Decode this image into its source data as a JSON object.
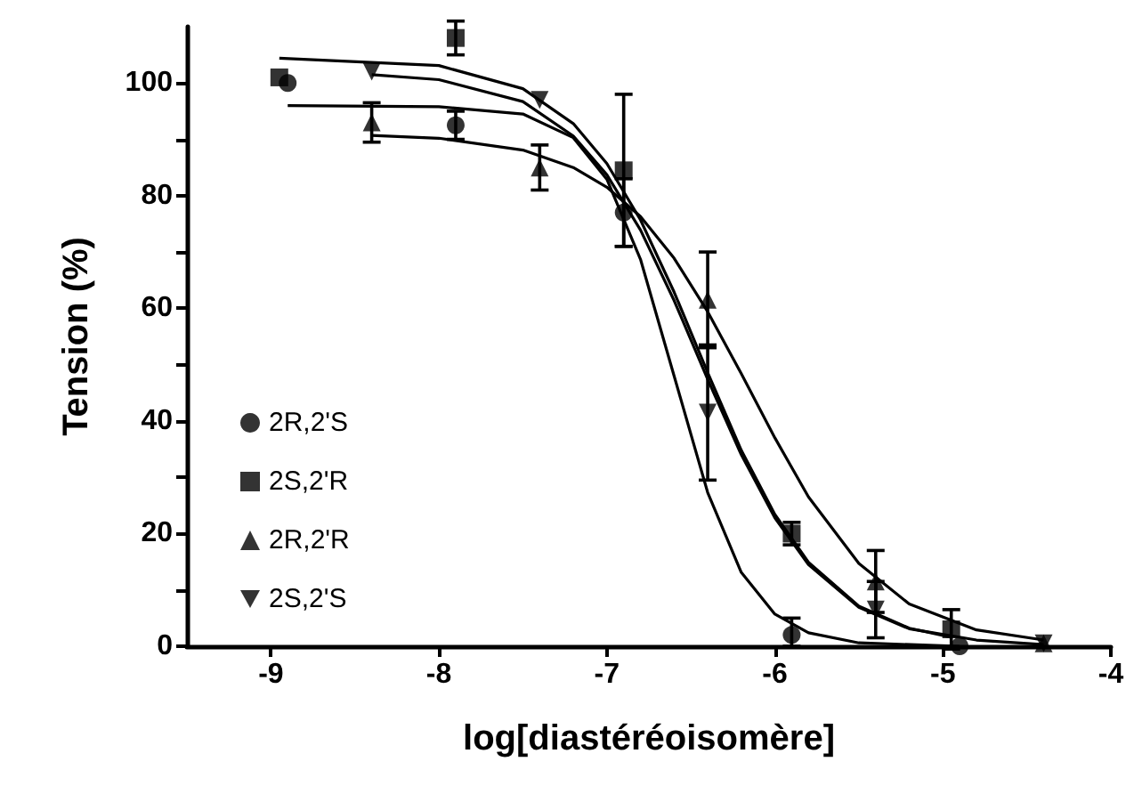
{
  "chart_data": {
    "type": "scatter",
    "xlabel": "log[diastéréoisomère]",
    "ylabel": "Tension (%)",
    "xlim": [
      -9.5,
      -4
    ],
    "xticks": [
      -9,
      -8,
      -7,
      -6,
      -5,
      -4
    ],
    "ylim": [
      0,
      110
    ],
    "yticks": [
      0,
      {
        "value": 10,
        "label": null
      },
      20,
      {
        "value": 30,
        "label": null
      },
      40,
      {
        "value": 50,
        "label": null
      },
      60,
      {
        "value": 70,
        "label": null
      },
      80,
      {
        "value": 90,
        "label": null
      },
      100
    ],
    "grid": false,
    "legend": "left",
    "series": [
      {
        "name": "2R,2'S",
        "marker": "circle",
        "color": "#000000",
        "x": [
          -8.9,
          -7.9,
          -6.9,
          -5.9,
          -4.9
        ],
        "values": [
          100,
          92.5,
          77,
          2,
          0
        ],
        "errors": [
          null,
          2.5,
          6,
          [
            0,
            5
          ],
          null
        ]
      },
      {
        "name": "2S,2'R",
        "marker": "square",
        "color": "#000000",
        "x": [
          -8.95,
          -7.9,
          -6.9,
          -5.9,
          -4.95
        ],
        "values": [
          101,
          108,
          84.5,
          20,
          3
        ],
        "errors": [
          null,
          3,
          13.5,
          2,
          3.5
        ]
      },
      {
        "name": "2R,2'R",
        "marker": "triangle",
        "color": "#000000",
        "x": [
          -8.4,
          -7.4,
          -6.4,
          -5.4,
          -4.4
        ],
        "values": [
          93,
          85,
          61.5,
          11.5,
          0.5
        ],
        "errors": [
          3.5,
          4,
          8.5,
          5.5,
          null
        ]
      },
      {
        "name": "2S,2'S",
        "marker": "triangle-down",
        "color": "#000000",
        "x": [
          -8.4,
          -7.4,
          -6.4,
          -5.4,
          -4.4
        ],
        "values": [
          102,
          97,
          41.5,
          6.5,
          0.5
        ],
        "errors": [
          null,
          null,
          12,
          5,
          null
        ]
      },
      {
        "type": "line",
        "marker": "none",
        "color": "#000000",
        "x": [
          -8.9,
          -8,
          -7.5,
          -7.2,
          -7,
          -6.8,
          -6.6,
          -6.4,
          -6.2,
          -6,
          -5.8,
          -5.5,
          -4.9
        ],
        "values": [
          96,
          95.8,
          94.5,
          90.3,
          82.9,
          68.7,
          48,
          27.3,
          13.1,
          5.7,
          2.4,
          0.6,
          0
        ]
      },
      {
        "type": "line",
        "marker": "none",
        "color": "#000000",
        "x": [
          -8.95,
          -8,
          -7.5,
          -7.2,
          -7,
          -6.8,
          -6.6,
          -6.4,
          -6.2,
          -6,
          -5.8,
          -5.5,
          -5.2,
          -4.95
        ],
        "values": [
          104.4,
          103.1,
          99,
          92.8,
          85.7,
          75.7,
          62.9,
          48.6,
          34.8,
          23.4,
          14.9,
          7.1,
          3.2,
          1.6
        ]
      },
      {
        "type": "line",
        "marker": "none",
        "color": "#000000",
        "x": [
          -8.4,
          -8,
          -7.5,
          -7.2,
          -7,
          -6.8,
          -6.6,
          -6.4,
          -6.2,
          -6,
          -5.8,
          -5.5,
          -5.2,
          -4.8,
          -4.4
        ],
        "values": [
          90.7,
          90.2,
          88.1,
          85,
          81.5,
          76.3,
          68.9,
          59.4,
          48.4,
          37,
          26.5,
          14.7,
          7.5,
          2.9,
          1.1
        ]
      },
      {
        "type": "line",
        "marker": "none",
        "color": "#000000",
        "x": [
          -8.4,
          -8,
          -7.5,
          -7.2,
          -7,
          -6.8,
          -6.6,
          -6.4,
          -6.2,
          -6,
          -5.8,
          -5.5,
          -5.2,
          -4.8,
          -4.4
        ],
        "values": [
          101.5,
          100.6,
          96.7,
          90.6,
          83.7,
          73.9,
          61.4,
          47.4,
          34,
          22.8,
          14.5,
          6.9,
          3.1,
          1.1,
          0.3
        ]
      }
    ]
  }
}
